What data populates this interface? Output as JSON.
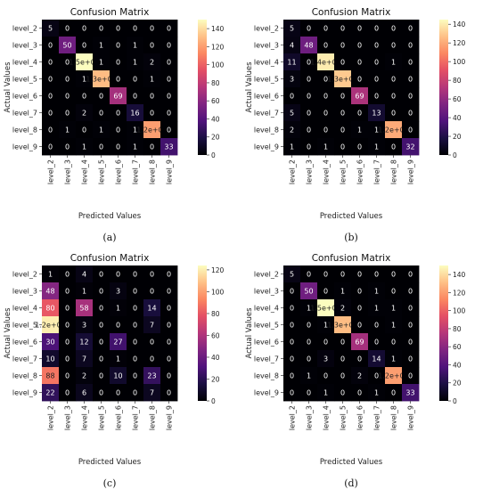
{
  "figure": {
    "captions": [
      "(a)",
      "(b)",
      "(c)",
      "(d)"
    ]
  },
  "chart_data": [
    {
      "type": "heatmap",
      "panel": "(a)",
      "title": "Confusion Matrix",
      "xlabel": "Predicted Values",
      "ylabel": "Actual Values",
      "x_categories": [
        "level_2",
        "level_3",
        "level_4",
        "level_5",
        "level_6",
        "level_7",
        "level_8",
        "level_9"
      ],
      "y_categories": [
        "level_2",
        "level_3",
        "level_4",
        "level_5",
        "level_6",
        "level_7",
        "level_8",
        "level_9"
      ],
      "values": [
        [
          5,
          0,
          0,
          0,
          0,
          0,
          0,
          0
        ],
        [
          0,
          50,
          0,
          1,
          0,
          1,
          0,
          0
        ],
        [
          0,
          0,
          150,
          1,
          0,
          1,
          2,
          0
        ],
        [
          0,
          0,
          1,
          130,
          0,
          0,
          1,
          0
        ],
        [
          0,
          0,
          0,
          0,
          69,
          0,
          0,
          0
        ],
        [
          0,
          0,
          2,
          0,
          0,
          16,
          0,
          0
        ],
        [
          0,
          1,
          0,
          1,
          0,
          1,
          120,
          0
        ],
        [
          0,
          0,
          1,
          0,
          0,
          1,
          0,
          33
        ]
      ],
      "labels": [
        [
          "5",
          "0",
          "0",
          "0",
          "0",
          "0",
          "0",
          "0"
        ],
        [
          "0",
          "50",
          "0",
          "1",
          "0",
          "1",
          "0",
          "0"
        ],
        [
          "0",
          "0",
          "1.5e+02",
          "1",
          "0",
          "1",
          "2",
          "0"
        ],
        [
          "0",
          "0",
          "1",
          "1.3e+02",
          "0",
          "0",
          "1",
          "0"
        ],
        [
          "0",
          "0",
          "0",
          "0",
          "69",
          "0",
          "0",
          "0"
        ],
        [
          "0",
          "0",
          "2",
          "0",
          "0",
          "16",
          "0",
          "0"
        ],
        [
          "0",
          "1",
          "0",
          "1",
          "0",
          "1",
          "1.2e+02",
          "0"
        ],
        [
          "0",
          "0",
          "1",
          "0",
          "0",
          "1",
          "0",
          "33"
        ]
      ],
      "colorbar": {
        "min": 0,
        "max": 150,
        "ticks": [
          0,
          20,
          40,
          60,
          80,
          100,
          120,
          140
        ]
      }
    },
    {
      "type": "heatmap",
      "panel": "(b)",
      "title": "Confusion Matrix",
      "xlabel": "Predicted Values",
      "ylabel": "Actual Values",
      "x_categories": [
        "level_2",
        "level_3",
        "level_4",
        "level_5",
        "level_6",
        "level_7",
        "level_8",
        "level_9"
      ],
      "y_categories": [
        "level_2",
        "level_3",
        "level_4",
        "level_5",
        "level_6",
        "level_7",
        "level_8",
        "level_9"
      ],
      "values": [
        [
          5,
          0,
          0,
          0,
          0,
          0,
          0,
          0
        ],
        [
          4,
          48,
          0,
          0,
          0,
          0,
          0,
          0
        ],
        [
          11,
          0,
          140,
          0,
          0,
          0,
          1,
          0
        ],
        [
          3,
          0,
          0,
          130,
          0,
          0,
          0,
          0
        ],
        [
          0,
          0,
          0,
          0,
          69,
          0,
          0,
          0
        ],
        [
          5,
          0,
          0,
          0,
          0,
          13,
          0,
          0
        ],
        [
          2,
          0,
          0,
          0,
          1,
          1,
          120,
          0
        ],
        [
          1,
          0,
          1,
          0,
          0,
          1,
          0,
          32
        ]
      ],
      "labels": [
        [
          "5",
          "0",
          "0",
          "0",
          "0",
          "0",
          "0",
          "0"
        ],
        [
          "4",
          "48",
          "0",
          "0",
          "0",
          "0",
          "0",
          "0"
        ],
        [
          "11",
          "0",
          "1.4e+02",
          "0",
          "0",
          "0",
          "1",
          "0"
        ],
        [
          "3",
          "0",
          "0",
          "1.3e+02",
          "0",
          "0",
          "0",
          "0"
        ],
        [
          "0",
          "0",
          "0",
          "0",
          "69",
          "0",
          "0",
          "0"
        ],
        [
          "5",
          "0",
          "0",
          "0",
          "0",
          "13",
          "0",
          "0"
        ],
        [
          "2",
          "0",
          "0",
          "0",
          "1",
          "1",
          "1.2e+02",
          "0"
        ],
        [
          "1",
          "0",
          "1",
          "0",
          "0",
          "1",
          "0",
          "32"
        ]
      ],
      "colorbar": {
        "min": 0,
        "max": 145,
        "ticks": [
          0,
          20,
          40,
          60,
          80,
          100,
          120,
          140
        ]
      }
    },
    {
      "type": "heatmap",
      "panel": "(c)",
      "title": "Confusion Matrix",
      "xlabel": "Predicted Values",
      "ylabel": "Actual Values",
      "x_categories": [
        "level_2",
        "level_3",
        "level_4",
        "level_5",
        "level_6",
        "level_7",
        "level_8",
        "level_9"
      ],
      "y_categories": [
        "level_2",
        "level_3",
        "level_4",
        "level_5",
        "level_6",
        "level_7",
        "level_8",
        "level_9"
      ],
      "values": [
        [
          1,
          0,
          4,
          0,
          0,
          0,
          0,
          0
        ],
        [
          48,
          0,
          1,
          0,
          3,
          0,
          0,
          0
        ],
        [
          80,
          0,
          58,
          0,
          1,
          0,
          14,
          0
        ],
        [
          120,
          0,
          3,
          0,
          0,
          0,
          7,
          0
        ],
        [
          30,
          0,
          12,
          0,
          27,
          0,
          0,
          0
        ],
        [
          10,
          0,
          7,
          0,
          1,
          0,
          0,
          0
        ],
        [
          88,
          0,
          2,
          0,
          10,
          0,
          23,
          0
        ],
        [
          22,
          0,
          6,
          0,
          0,
          0,
          7,
          0
        ]
      ],
      "labels": [
        [
          "1",
          "0",
          "4",
          "0",
          "0",
          "0",
          "0",
          "0"
        ],
        [
          "48",
          "0",
          "1",
          "0",
          "3",
          "0",
          "0",
          "0"
        ],
        [
          "80",
          "0",
          "58",
          "0",
          "1",
          "0",
          "14",
          "0"
        ],
        [
          "1.2e+02",
          "0",
          "3",
          "0",
          "0",
          "0",
          "7",
          "0"
        ],
        [
          "30",
          "0",
          "12",
          "0",
          "27",
          "0",
          "0",
          "0"
        ],
        [
          "10",
          "0",
          "7",
          "0",
          "1",
          "0",
          "0",
          "0"
        ],
        [
          "88",
          "0",
          "2",
          "0",
          "10",
          "0",
          "23",
          "0"
        ],
        [
          "22",
          "0",
          "6",
          "0",
          "0",
          "0",
          "7",
          "0"
        ]
      ],
      "colorbar": {
        "min": 0,
        "max": 124,
        "ticks": [
          0,
          20,
          40,
          60,
          80,
          100,
          120
        ]
      }
    },
    {
      "type": "heatmap",
      "panel": "(d)",
      "title": "Confusion Matrix",
      "xlabel": "Predicted Values",
      "ylabel": "Actual Values",
      "x_categories": [
        "level_2",
        "level_3",
        "level_4",
        "level_5",
        "level_6",
        "level_7",
        "level_8",
        "level_9"
      ],
      "y_categories": [
        "level_2",
        "level_3",
        "level_4",
        "level_5",
        "level_6",
        "level_7",
        "level_8",
        "level_9"
      ],
      "values": [
        [
          5,
          0,
          0,
          0,
          0,
          0,
          0,
          0
        ],
        [
          0,
          50,
          0,
          1,
          0,
          1,
          0,
          0
        ],
        [
          0,
          1,
          150,
          2,
          0,
          1,
          1,
          0
        ],
        [
          0,
          0,
          1,
          130,
          0,
          0,
          1,
          0
        ],
        [
          0,
          0,
          0,
          0,
          69,
          0,
          0,
          0
        ],
        [
          0,
          0,
          3,
          0,
          0,
          14,
          1,
          0
        ],
        [
          0,
          1,
          0,
          0,
          2,
          0,
          120,
          0
        ],
        [
          0,
          0,
          1,
          0,
          0,
          1,
          0,
          33
        ]
      ],
      "labels": [
        [
          "5",
          "0",
          "0",
          "0",
          "0",
          "0",
          "0",
          "0"
        ],
        [
          "0",
          "50",
          "0",
          "1",
          "0",
          "1",
          "0",
          "0"
        ],
        [
          "0",
          "1",
          "1.5e+02",
          "2",
          "0",
          "1",
          "1",
          "0"
        ],
        [
          "0",
          "0",
          "1",
          "1.3e+02",
          "0",
          "0",
          "1",
          "0"
        ],
        [
          "0",
          "0",
          "0",
          "0",
          "69",
          "0",
          "0",
          "0"
        ],
        [
          "0",
          "0",
          "3",
          "0",
          "0",
          "14",
          "1",
          "0"
        ],
        [
          "0",
          "1",
          "0",
          "0",
          "2",
          "0",
          "1.2e+02",
          "0"
        ],
        [
          "0",
          "0",
          "1",
          "0",
          "0",
          "1",
          "0",
          "33"
        ]
      ],
      "colorbar": {
        "min": 0,
        "max": 150,
        "ticks": [
          0,
          20,
          40,
          60,
          80,
          100,
          120,
          140
        ]
      }
    }
  ]
}
